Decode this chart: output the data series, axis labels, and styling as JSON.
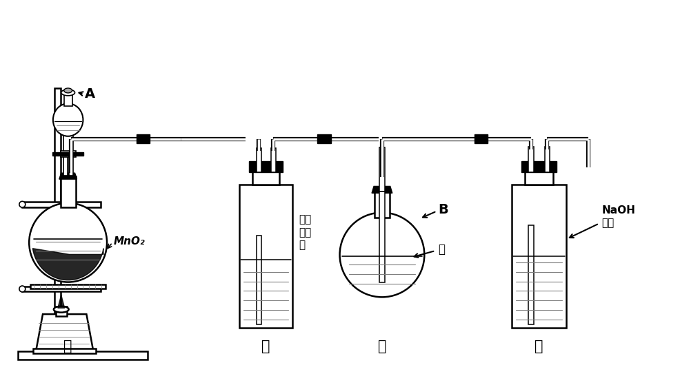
{
  "bg_color": "#ffffff",
  "line_color": "#000000",
  "label_A": "A",
  "label_B": "B",
  "label_MnO2": "MnO₂",
  "label_NaOH": "NaOH\n溶液",
  "label_baohe": "饱和\n食盐\n水",
  "label_shui": "水",
  "label_jia": "甲",
  "label_yi": "乙",
  "label_bing": "丙",
  "label_ding": "丁",
  "figsize": [
    9.99,
    5.43
  ],
  "dpi": 100
}
